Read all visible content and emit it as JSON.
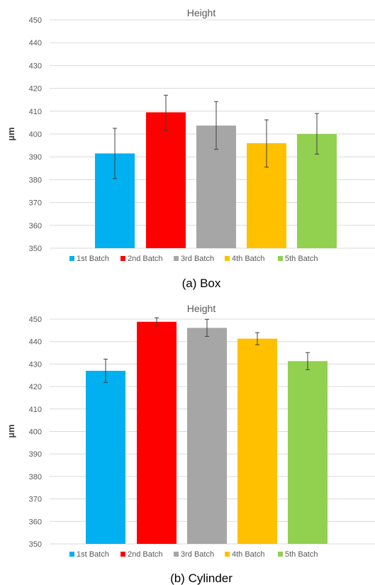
{
  "chart_data": [
    {
      "type": "bar",
      "title": "Height",
      "ylabel": "µm",
      "xlabel": "",
      "caption": "(a) Box",
      "ylim": [
        350,
        450
      ],
      "yticks": [
        350,
        360,
        370,
        380,
        390,
        400,
        410,
        420,
        430,
        440,
        450
      ],
      "grid": true,
      "legend_position": "bottom",
      "series": [
        {
          "name": "1st Batch",
          "value": 391.5,
          "err_low": 380.5,
          "err_high": 402.5,
          "color": "#00B0F0"
        },
        {
          "name": "2nd Batch",
          "value": 409.5,
          "err_low": 401.5,
          "err_high": 417.0,
          "color": "#FF0000"
        },
        {
          "name": "3rd Batch",
          "value": 403.7,
          "err_low": 393.3,
          "err_high": 414.2,
          "color": "#A6A6A6"
        },
        {
          "name": "4th Batch",
          "value": 396.0,
          "err_low": 385.5,
          "err_high": 406.2,
          "color": "#FFC000"
        },
        {
          "name": "5th Batch",
          "value": 400.0,
          "err_low": 391.2,
          "err_high": 409.0,
          "color": "#92D050"
        }
      ]
    },
    {
      "type": "bar",
      "title": "Height",
      "ylabel": "µm",
      "xlabel": "",
      "caption": "(b) Cylinder",
      "ylim": [
        350,
        450
      ],
      "yticks": [
        350,
        360,
        370,
        380,
        390,
        400,
        410,
        420,
        430,
        440,
        450
      ],
      "grid": true,
      "legend_position": "bottom",
      "series": [
        {
          "name": "1st Batch",
          "value": 427.0,
          "err_low": 421.8,
          "err_high": 432.2,
          "color": "#00B0F0"
        },
        {
          "name": "2nd Batch",
          "value": 448.8,
          "err_low": 447.0,
          "err_high": 450.6,
          "color": "#FF0000"
        },
        {
          "name": "3rd Batch",
          "value": 446.1,
          "err_low": 442.3,
          "err_high": 449.9,
          "color": "#A6A6A6"
        },
        {
          "name": "4th Batch",
          "value": 441.3,
          "err_low": 438.6,
          "err_high": 444.0,
          "color": "#FFC000"
        },
        {
          "name": "5th Batch",
          "value": 431.3,
          "err_low": 427.5,
          "err_high": 435.1,
          "color": "#92D050"
        }
      ]
    }
  ]
}
